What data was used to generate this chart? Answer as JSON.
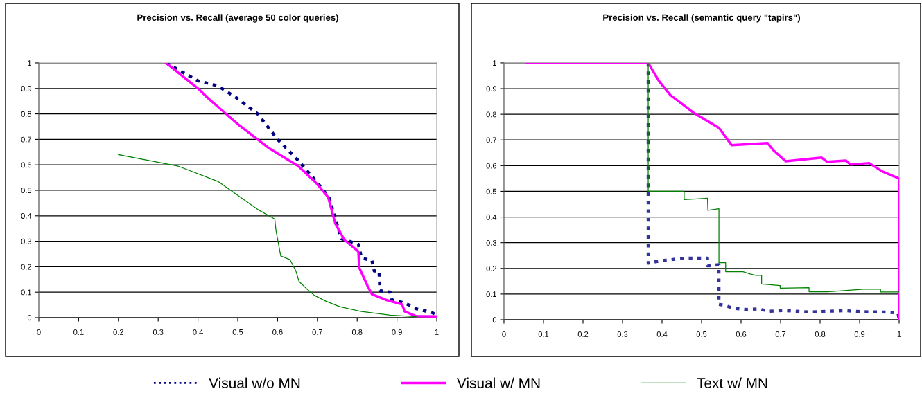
{
  "chart_data": [
    {
      "type": "line",
      "title": "Precision vs. Recall (average 50 color queries)",
      "xlim": [
        0,
        1
      ],
      "ylim": [
        0,
        1
      ],
      "xticks": [
        0,
        0.1,
        0.2,
        0.3,
        0.4,
        0.5,
        0.6,
        0.7,
        0.8,
        0.9,
        1
      ],
      "yticks": [
        0,
        0.1,
        0.2,
        0.3,
        0.4,
        0.5,
        0.6,
        0.7,
        0.8,
        0.9,
        1
      ],
      "grid": "y",
      "legend": "bottom",
      "series": [
        {
          "name": "Visual w/o MN",
          "color": "#000080",
          "line_style": "dashed",
          "x": [
            0.32,
            0.4,
            0.45,
            0.5,
            0.55,
            0.6,
            0.65,
            0.7,
            0.73,
            0.76,
            0.803,
            0.811,
            0.837,
            0.843,
            0.855,
            0.857,
            0.883,
            0.887,
            0.913,
            0.93,
            0.948,
            0.988,
            1.0
          ],
          "values": [
            1.0,
            0.93,
            0.91,
            0.86,
            0.8,
            0.7,
            0.62,
            0.53,
            0.47,
            0.31,
            0.288,
            0.234,
            0.224,
            0.183,
            0.183,
            0.106,
            0.1,
            0.07,
            0.06,
            0.05,
            0.035,
            0.02,
            0.01
          ]
        },
        {
          "name": "Visual w/ MN",
          "color": "#ff00ff",
          "line_style": "solid",
          "x": [
            0.32,
            0.4,
            0.425,
            0.5,
            0.576,
            0.652,
            0.698,
            0.727,
            0.745,
            0.768,
            0.803,
            0.805,
            0.826,
            0.837,
            0.872,
            0.913,
            0.919,
            0.948,
            1.0
          ],
          "values": [
            1.0,
            0.9,
            0.862,
            0.76,
            0.668,
            0.595,
            0.527,
            0.473,
            0.37,
            0.305,
            0.26,
            0.197,
            0.125,
            0.092,
            0.07,
            0.052,
            0.025,
            0.006,
            0.005
          ]
        },
        {
          "name": "Text w/ MN",
          "color": "#008000",
          "line_style": "solid",
          "x": [
            0.2,
            0.35,
            0.45,
            0.55,
            0.593,
            0.596,
            0.608,
            0.631,
            0.646,
            0.654,
            0.672,
            0.692,
            0.721,
            0.756,
            0.808,
            0.883,
            0.948
          ],
          "values": [
            0.64,
            0.595,
            0.535,
            0.425,
            0.387,
            0.342,
            0.242,
            0.228,
            0.183,
            0.142,
            0.115,
            0.088,
            0.065,
            0.043,
            0.025,
            0.01,
            0.004
          ]
        }
      ]
    },
    {
      "type": "line",
      "title": "Precision vs. Recall (semantic query \"tapirs\")",
      "xlim": [
        0,
        1
      ],
      "ylim": [
        0,
        1
      ],
      "xticks": [
        0,
        0.1,
        0.2,
        0.3,
        0.4,
        0.5,
        0.6,
        0.7,
        0.8,
        0.9,
        1
      ],
      "yticks": [
        0,
        0.1,
        0.2,
        0.3,
        0.4,
        0.5,
        0.6,
        0.7,
        0.8,
        0.9,
        1
      ],
      "grid": "y",
      "series": [
        {
          "color": "#333399",
          "line_style": "dashed",
          "x": [
            0.365,
            0.365,
            0.397,
            0.462,
            0.515,
            0.515,
            0.544,
            0.544,
            0.561,
            0.579,
            0.614,
            0.643,
            0.672,
            0.708,
            0.772,
            0.818,
            0.865,
            0.906,
            0.959,
            0.997,
            1.0
          ],
          "values": [
            1.0,
            0.22,
            0.23,
            0.24,
            0.24,
            0.21,
            0.214,
            0.06,
            0.055,
            0.045,
            0.04,
            0.042,
            0.033,
            0.036,
            0.03,
            0.033,
            0.035,
            0.031,
            0.03,
            0.027,
            0.0
          ]
        },
        {
          "color": "#ff00ff",
          "line_style": "solid",
          "x": [
            0.058,
            0.365,
            0.392,
            0.421,
            0.48,
            0.544,
            0.576,
            0.667,
            0.681,
            0.713,
            0.804,
            0.818,
            0.865,
            0.877,
            0.924,
            0.958,
            1.0,
            1.0
          ],
          "values": [
            1.0,
            1.0,
            0.93,
            0.875,
            0.806,
            0.747,
            0.68,
            0.688,
            0.661,
            0.617,
            0.631,
            0.615,
            0.62,
            0.604,
            0.61,
            0.577,
            0.55,
            0.0
          ]
        },
        {
          "color": "#008000",
          "line_style": "solid",
          "x": [
            0.365,
            0.365,
            0.456,
            0.456,
            0.515,
            0.516,
            0.544,
            0.544,
            0.561,
            0.561,
            0.605,
            0.623,
            0.637,
            0.652,
            0.652,
            0.699,
            0.699,
            0.772,
            0.772,
            0.818,
            0.909,
            0.953,
            0.953,
            1.0
          ],
          "values": [
            1.0,
            0.5,
            0.5,
            0.468,
            0.473,
            0.426,
            0.432,
            0.222,
            0.222,
            0.187,
            0.187,
            0.178,
            0.173,
            0.173,
            0.139,
            0.133,
            0.123,
            0.125,
            0.109,
            0.109,
            0.119,
            0.119,
            0.108,
            0.108
          ]
        }
      ]
    }
  ]
}
